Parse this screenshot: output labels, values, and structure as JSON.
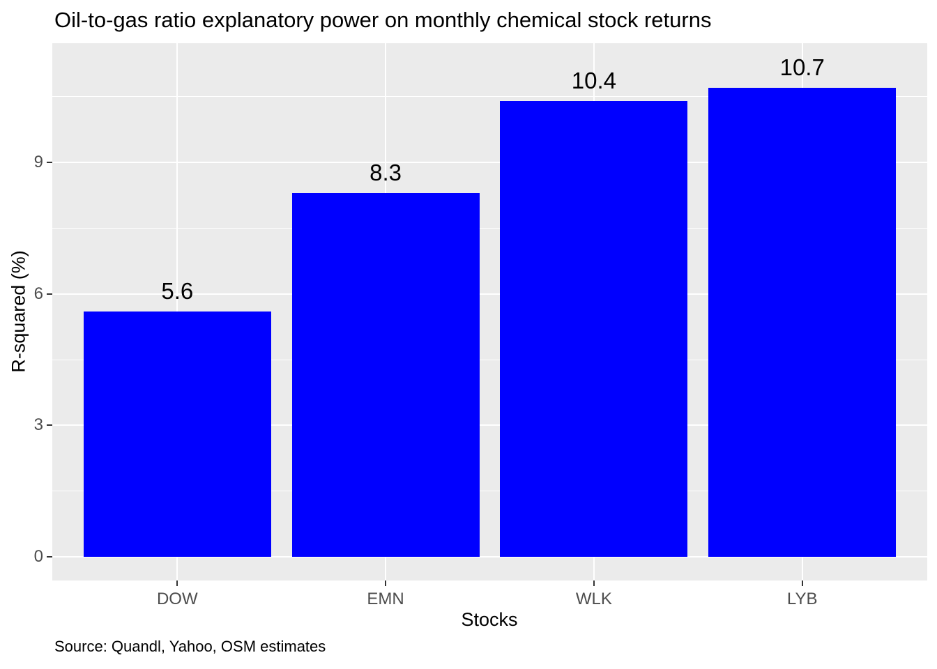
{
  "chart_data": {
    "type": "bar",
    "title": "Oil-to-gas ratio explanatory power on monthly chemical stock returns",
    "categories": [
      "DOW",
      "EMN",
      "WLK",
      "LYB"
    ],
    "values": [
      5.6,
      8.3,
      10.4,
      10.7
    ],
    "bar_labels": [
      "5.6",
      "8.3",
      "10.4",
      "10.7"
    ],
    "xlabel": "Stocks",
    "ylabel": "R-squared (%)",
    "yticks": [
      0,
      3,
      6,
      9
    ],
    "ytick_labels": [
      "0",
      "3",
      "6",
      "9"
    ],
    "yticks_minor": [
      1.5,
      4.5,
      7.5,
      10.5
    ],
    "ylim": [
      -0.54,
      11.72
    ],
    "bar_width_fraction": 0.9,
    "grid": true,
    "legend": false,
    "caption": "Source: Quandl, Yahoo, OSM estimates",
    "colors": {
      "bar": "#0000FF",
      "panel_background": "#EBEBEB",
      "gridline": "#FFFFFF",
      "axis_text": "#4D4D4D",
      "tick_mark": "#333333",
      "text": "#000000",
      "background": "#FFFFFF"
    }
  }
}
